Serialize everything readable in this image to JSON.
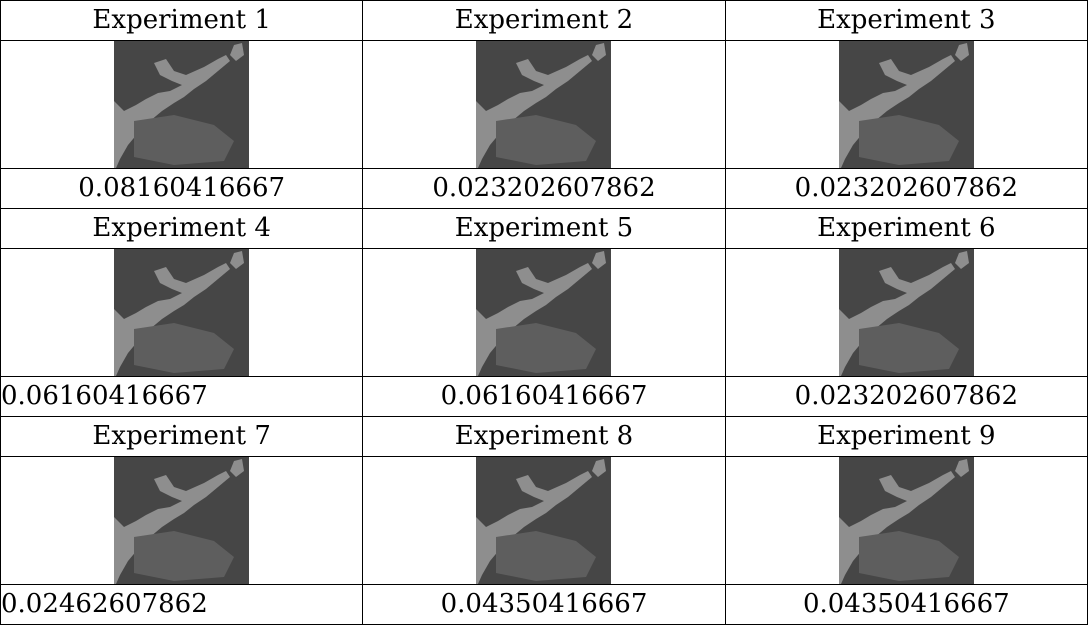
{
  "table": {
    "cells": [
      {
        "title": "Experiment 1",
        "value": "0.08160416667"
      },
      {
        "title": "Experiment 2",
        "value": "0.023202607862"
      },
      {
        "title": "Experiment 3",
        "value": "0.023202607862"
      },
      {
        "title": "Experiment 4",
        "value": "0.06160416667"
      },
      {
        "title": "Experiment 5",
        "value": "0.06160416667"
      },
      {
        "title": "Experiment 6",
        "value": "0.023202607862"
      },
      {
        "title": "Experiment 7",
        "value": "0.02462607862"
      },
      {
        "title": "Experiment 8",
        "value": "0.04350416667"
      },
      {
        "title": "Experiment 9",
        "value": "0.04350416667"
      }
    ]
  }
}
